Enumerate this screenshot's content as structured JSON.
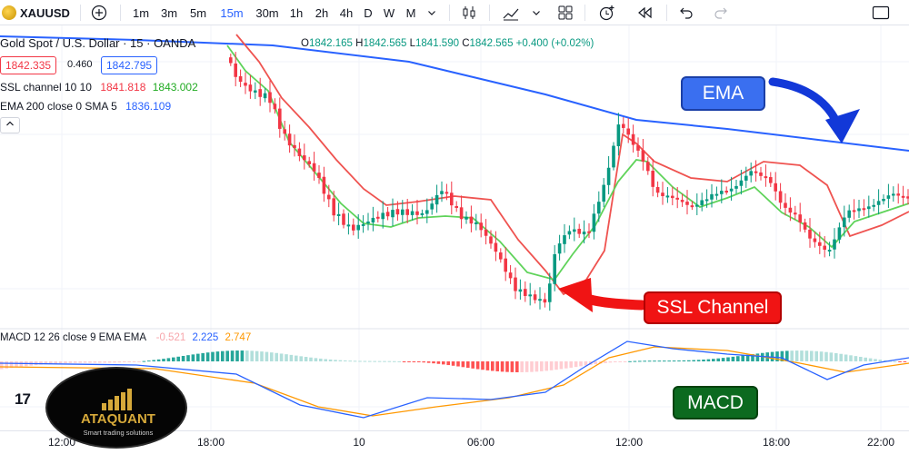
{
  "toolbar": {
    "symbol": "XAUUSD",
    "add_icon": "plus-circle-icon",
    "intervals": [
      "1m",
      "3m",
      "5m",
      "15m",
      "30m",
      "1h",
      "2h",
      "4h",
      "D",
      "W",
      "M"
    ],
    "active_interval": "15m",
    "icons": [
      "interval-dropdown-icon",
      "candles-icon",
      "indicators-icon",
      "indicators-dropdown-icon",
      "layout-grid-icon",
      "alert-icon",
      "replay-icon",
      "undo-icon",
      "redo-icon",
      "fullscreen-icon"
    ]
  },
  "legend": {
    "title": "Gold Spot / U.S. Dollar · 15 · OANDA",
    "ohlc": {
      "o_label": "O",
      "o": "1842.165",
      "h_label": "H",
      "h": "1842.565",
      "l_label": "L",
      "l": "1841.590",
      "c_label": "C",
      "c": "1842.565",
      "change": "+0.400 (+0.02%)"
    },
    "bid": "1842.335",
    "spread": "0.460",
    "ask": "1842.795",
    "ssl": {
      "label": "SSL channel 10 10",
      "v1": "1841.818",
      "v2": "1843.002"
    },
    "ema": {
      "label": "EMA 200 close 0 SMA 5",
      "v1": "1836.109"
    },
    "macd": {
      "label": "MACD 12 26 close 9 EMA EMA",
      "hist": "-0.521",
      "macd": "2.225",
      "signal": "2.747"
    }
  },
  "annotations": {
    "ema": "EMA",
    "ssl": "SSL Channel",
    "macd": "MACD"
  },
  "colors": {
    "up": "#089981",
    "down": "#f23645",
    "ema_line": "#2962ff",
    "ssl_up": "#5fd35a",
    "ssl_down": "#ef5350",
    "macd_line": "#2962ff",
    "signal_line": "#ff9800",
    "ema_box": "#3a6ff0",
    "ssl_box": "#f01414",
    "macd_box": "#0c6a1f"
  },
  "time_axis": [
    "12:00",
    "18:00",
    "10",
    "06:00",
    "12:00",
    "18:00",
    "22:00"
  ],
  "logo": {
    "tradingview": "17",
    "brand": "ATAQUANT",
    "tagline": "Smart trading solutions"
  }
}
